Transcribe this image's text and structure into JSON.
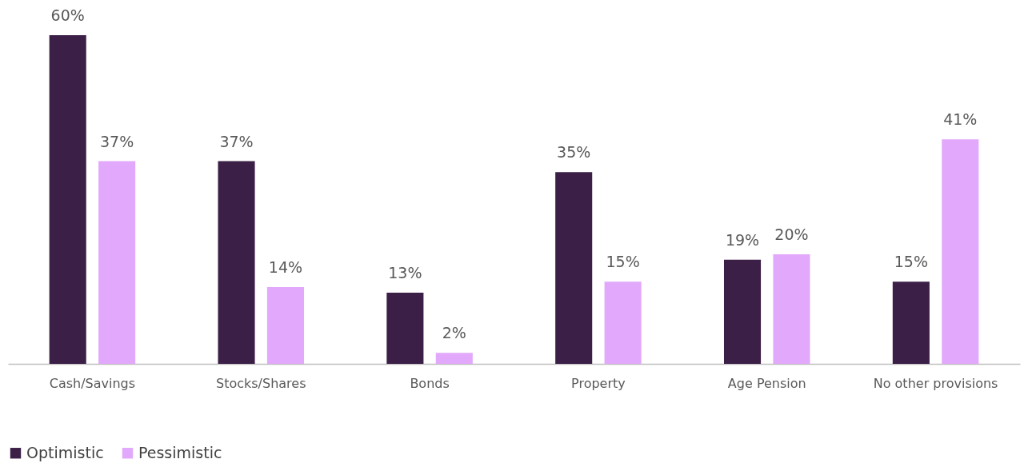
{
  "chart_data": {
    "type": "bar",
    "categories": [
      "Cash/Savings",
      "Stocks/Shares",
      "Bonds",
      "Property",
      "Age Pension",
      "No other provisions"
    ],
    "series": [
      {
        "name": "Optimistic",
        "color": "#3b1f47",
        "values": [
          60,
          37,
          13,
          35,
          19,
          15
        ],
        "value_labels": [
          "60%",
          "37%",
          "13%",
          "35%",
          "19%",
          "15%"
        ]
      },
      {
        "name": "Pessimistic",
        "color": "#e2a8fb",
        "values": [
          37,
          14,
          2,
          15,
          20,
          41
        ],
        "value_labels": [
          "37%",
          "14%",
          "2%",
          "15%",
          "20%",
          "41%"
        ]
      }
    ],
    "legend": "bottom",
    "grid": false
  }
}
